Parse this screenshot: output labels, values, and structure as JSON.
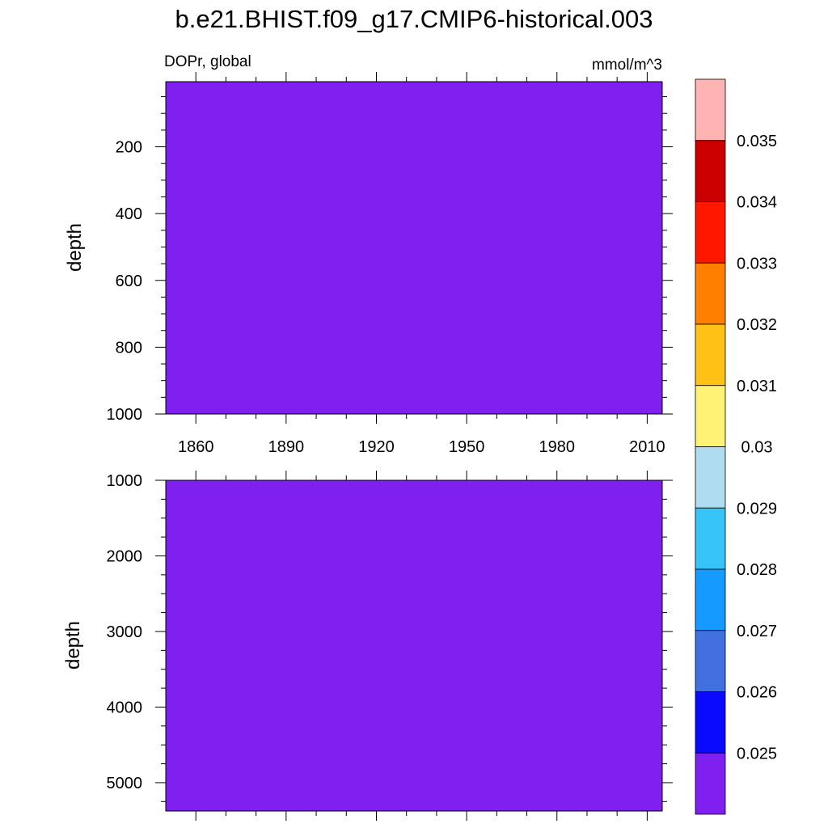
{
  "title": "b.e21.BHIST.f09_g17.CMIP6-historical.003",
  "chart_data": {
    "type": "heatmap",
    "variable_label": "DOPr, global",
    "units": "mmol/m^3",
    "field_value_level": "below 0.025",
    "x_tick_labels": [
      "1860",
      "1890",
      "1920",
      "1950",
      "1980",
      "2010"
    ],
    "x_ticks": [
      1860,
      1890,
      1920,
      1950,
      1980,
      2010
    ],
    "xlim": [
      1850,
      2015
    ],
    "panels": [
      {
        "name": "upper",
        "ylabel": "depth",
        "ylim": [
          5,
          1000
        ],
        "y_reversed": true,
        "y_ticks": [
          200,
          400,
          600,
          800,
          1000
        ],
        "y_tick_labels": [
          "200",
          "400",
          "600",
          "800",
          "1000"
        ],
        "fill_color": "#8020f0"
      },
      {
        "name": "lower",
        "ylabel": "depth",
        "ylim": [
          1000,
          5375
        ],
        "y_reversed": true,
        "y_ticks": [
          1000,
          2000,
          3000,
          4000,
          5000
        ],
        "y_tick_labels": [
          "1000",
          "2000",
          "3000",
          "4000",
          "5000"
        ],
        "fill_color": "#8020f0"
      }
    ],
    "colorbar": {
      "levels": [
        "0.025",
        "0.026",
        "0.027",
        "0.028",
        "0.029",
        "0.03",
        "0.031",
        "0.032",
        "0.033",
        "0.034",
        "0.035"
      ],
      "colors": [
        "#8020f0",
        "#0a0aff",
        "#4170e1",
        "#159bff",
        "#36c4f7",
        "#b0dcf0",
        "#fff173",
        "#ffc115",
        "#ff8000",
        "#ff1800",
        "#cc0000",
        "#ffb3b3"
      ]
    }
  }
}
